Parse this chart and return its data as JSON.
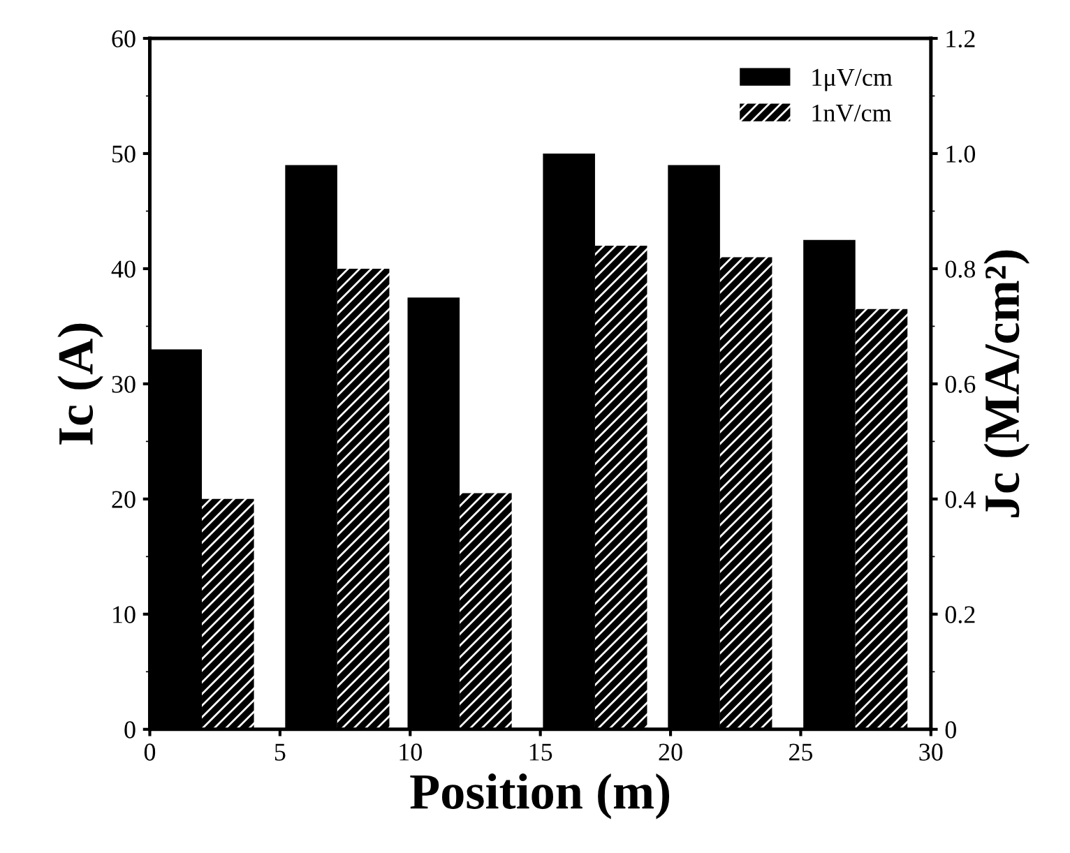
{
  "chart_data": {
    "type": "bar",
    "xlabel": "Position (m)",
    "ylabel": "Ic (A)",
    "y2label": "Jc (MA/cm²)",
    "series": [
      {
        "name": "1μV/cm",
        "color": "#000000",
        "x": [
          1,
          6.2,
          10.9,
          16.1,
          20.9,
          26.1
        ],
        "values": [
          33,
          49,
          37.5,
          50,
          49,
          42.5
        ]
      },
      {
        "name": "1nV/cm",
        "color": "#000000",
        "x": [
          3,
          8.2,
          12.9,
          18.1,
          22.9,
          28.1
        ],
        "values": [
          20,
          40,
          20.5,
          42,
          41,
          36.5
        ]
      }
    ],
    "xlim": [
      0,
      30
    ],
    "xticks": [
      0,
      5,
      10,
      15,
      20,
      25,
      30
    ],
    "ylim": [
      0,
      60
    ],
    "yticks": [
      0,
      10,
      20,
      30,
      40,
      50,
      60
    ],
    "y2lim": [
      0,
      1.2
    ],
    "y2ticks": [
      0,
      {
        "value": 0.2,
        "label": "0.2"
      },
      {
        "value": 0.4,
        "label": "0.4"
      },
      {
        "value": 0.6,
        "label": "0.6"
      },
      {
        "value": 0.8,
        "label": "0.8"
      },
      {
        "value": 1.0,
        "label": "1.0"
      },
      {
        "value": 1.2,
        "label": "1.2"
      }
    ],
    "legend": "top right",
    "grid": false
  }
}
